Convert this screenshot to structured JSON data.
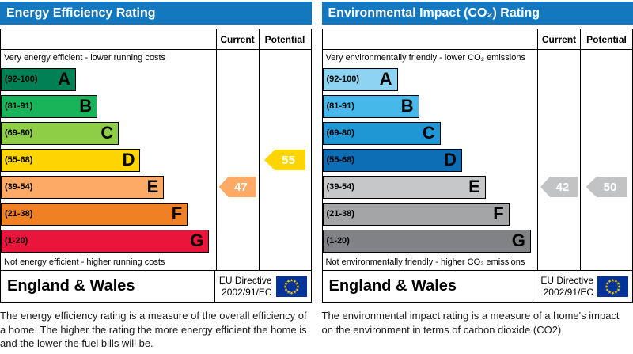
{
  "colors": {
    "header_bg": "#1478be",
    "flag_bg": "#003399",
    "flag_star": "#ffcc00"
  },
  "left": {
    "title": "Energy Efficiency Rating",
    "columns": {
      "current": "Current",
      "potential": "Potential"
    },
    "top_caption": "Very energy efficient - lower running costs",
    "bottom_caption": "Not energy efficient - higher running costs",
    "bands": [
      {
        "range": "(92-100)",
        "letter": "A",
        "color": "#008054",
        "width_pct": 35
      },
      {
        "range": "(81-91)",
        "letter": "B",
        "color": "#19b459",
        "width_pct": 45
      },
      {
        "range": "(69-80)",
        "letter": "C",
        "color": "#8dce46",
        "width_pct": 55
      },
      {
        "range": "(55-68)",
        "letter": "D",
        "color": "#ffd500",
        "width_pct": 65
      },
      {
        "range": "(39-54)",
        "letter": "E",
        "color": "#fcaa65",
        "width_pct": 76
      },
      {
        "range": "(21-38)",
        "letter": "F",
        "color": "#ef8023",
        "width_pct": 87
      },
      {
        "range": "(1-20)",
        "letter": "G",
        "color": "#e9153b",
        "width_pct": 97
      }
    ],
    "current": {
      "value": "47",
      "band_index": 4,
      "color": "#fcaa65"
    },
    "potential": {
      "value": "55",
      "band_index": 3,
      "color": "#ffd500"
    },
    "footer": {
      "region": "England & Wales",
      "directive_line1": "EU Directive",
      "directive_line2": "2002/91/EC"
    },
    "description": "The energy efficiency rating is a measure of the overall efficiency of a home.  The higher the rating the more energy efficient the home is and the lower the fuel bills will be."
  },
  "right": {
    "title": "Environmental Impact (CO₂) Rating",
    "columns": {
      "current": "Current",
      "potential": "Potential"
    },
    "top_caption": "Very environmentally friendly - lower CO₂ emissions",
    "bottom_caption": "Not environmentally friendly - higher CO₂ emissions",
    "bands": [
      {
        "range": "(92-100)",
        "letter": "A",
        "color": "#8ed4f2",
        "width_pct": 35
      },
      {
        "range": "(81-91)",
        "letter": "B",
        "color": "#46b9ea",
        "width_pct": 45
      },
      {
        "range": "(69-80)",
        "letter": "C",
        "color": "#1f97d4",
        "width_pct": 55
      },
      {
        "range": "(55-68)",
        "letter": "D",
        "color": "#0d6eb5",
        "width_pct": 65
      },
      {
        "range": "(39-54)",
        "letter": "E",
        "color": "#c6c7c9",
        "width_pct": 76
      },
      {
        "range": "(21-38)",
        "letter": "F",
        "color": "#a4a5a7",
        "width_pct": 87
      },
      {
        "range": "(1-20)",
        "letter": "G",
        "color": "#808285",
        "width_pct": 97
      }
    ],
    "current": {
      "value": "42",
      "band_index": 4,
      "color": "#c2c3c5"
    },
    "potential": {
      "value": "50",
      "band_index": 4,
      "color": "#c2c3c5"
    },
    "footer": {
      "region": "England & Wales",
      "directive_line1": "EU Directive",
      "directive_line2": "2002/91/EC"
    },
    "description": "The environmental impact rating is a measure of a home's impact on the environment in terms of carbon dioxide (CO2)"
  },
  "chart_data": [
    {
      "type": "bar",
      "title": "Energy Efficiency Rating",
      "categories": [
        "A (92-100)",
        "B (81-91)",
        "C (69-80)",
        "D (55-68)",
        "E (39-54)",
        "F (21-38)",
        "G (1-20)"
      ],
      "values": [
        35,
        45,
        55,
        65,
        76,
        87,
        97
      ],
      "current_rating": 47,
      "potential_rating": 55,
      "xlabel": "",
      "ylabel": "",
      "legend": [
        "Current",
        "Potential"
      ],
      "note": "Band bar lengths are fixed decorative widths; ratings shown as arrows in Current/Potential columns"
    },
    {
      "type": "bar",
      "title": "Environmental Impact (CO₂) Rating",
      "categories": [
        "A (92-100)",
        "B (81-91)",
        "C (69-80)",
        "D (55-68)",
        "E (39-54)",
        "F (21-38)",
        "G (1-20)"
      ],
      "values": [
        35,
        45,
        55,
        65,
        76,
        87,
        97
      ],
      "current_rating": 42,
      "potential_rating": 50,
      "xlabel": "",
      "ylabel": "",
      "legend": [
        "Current",
        "Potential"
      ],
      "note": "Band bar lengths are fixed decorative widths; ratings shown as arrows in Current/Potential columns"
    }
  ]
}
